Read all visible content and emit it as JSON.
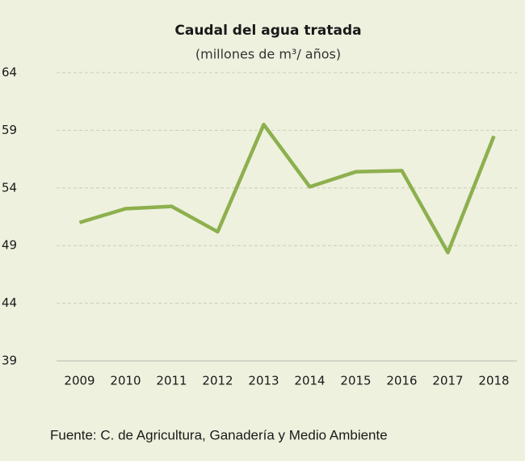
{
  "chart_data": {
    "type": "line",
    "title": "Caudal del agua tratada",
    "subtitle": "(millones de m³/ años)",
    "source": "Fuente: C. de Agricultura, Ganadería y Medio Ambiente",
    "categories": [
      "2009",
      "2010",
      "2011",
      "2012",
      "2013",
      "2014",
      "2015",
      "2016",
      "2017",
      "2018"
    ],
    "series": [
      {
        "name": "Caudal",
        "color": "#8db04e",
        "values": [
          51.0,
          52.2,
          52.4,
          50.2,
          59.5,
          54.1,
          55.4,
          55.5,
          48.4,
          58.5
        ]
      }
    ],
    "ylim": [
      39,
      64
    ],
    "yticks": [
      39,
      44,
      49,
      54,
      59,
      64
    ],
    "grid": true
  }
}
